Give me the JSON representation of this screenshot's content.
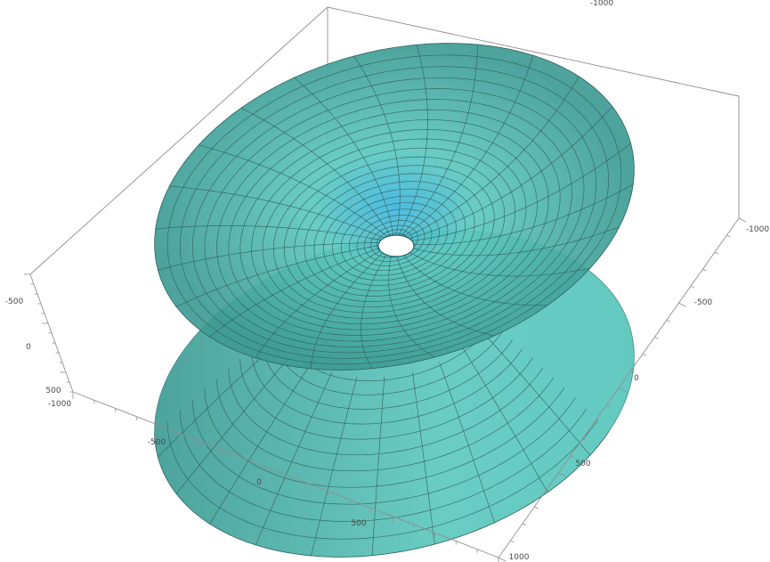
{
  "chart_data": {
    "type": "surface3d",
    "title": "",
    "surface": {
      "description_free": true,
      "r_range": [
        25,
        620
      ],
      "theta_range_deg": [
        0,
        360
      ],
      "z_top_at_rmax": 340,
      "z_bottom_at_rmax": -340,
      "radial_mesh_lines": 24,
      "angular_mesh_lines": 24,
      "colors": {
        "face": "#5ec9bf",
        "face_dark": "#3f9c95",
        "throat": "#3fb6e0",
        "mesh": "#2e5a55"
      }
    },
    "axes": {
      "x": {
        "range": [
          -1000,
          1000
        ],
        "tick_labels": [
          "-1000",
          "-500",
          "0",
          "500"
        ]
      },
      "y": {
        "range": [
          -1000,
          1000
        ],
        "tick_labels": [
          "-1000",
          "-500",
          "0",
          "500",
          "1000"
        ]
      },
      "z": {
        "range": [
          -1000,
          1000
        ],
        "tick_labels": [
          "-500",
          "0",
          "500"
        ]
      }
    },
    "top_axis_label": "-1000"
  }
}
